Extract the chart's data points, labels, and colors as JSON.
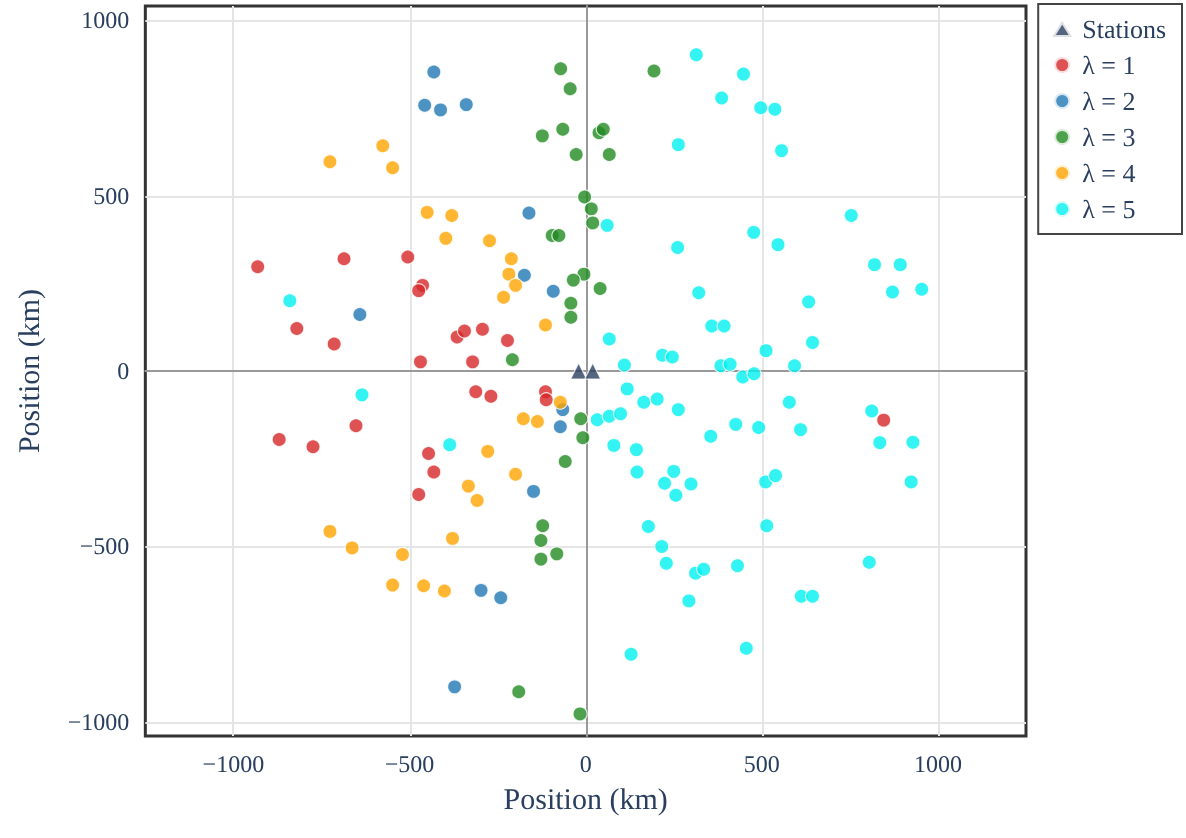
{
  "chart_data": {
    "type": "scatter",
    "xlabel": "Position (km)",
    "ylabel": "Position (km)",
    "xlim": [
      -1250,
      1250
    ],
    "ylim": [
      -1040,
      1040
    ],
    "xticks": [
      -1000,
      -500,
      0,
      500,
      1000
    ],
    "yticks": [
      -1000,
      -500,
      0,
      500,
      1000
    ],
    "grid": true,
    "legend": "top right",
    "marker": "circle",
    "series": [
      {
        "name": "Stations",
        "color": "#2a3f5f",
        "marker": "triangle",
        "x": [
          -20,
          20
        ],
        "values": [
          0,
          0
        ]
      },
      {
        "name": "λ = 1",
        "color": "#d62728",
        "x": [
          -931,
          -686,
          -505,
          -463,
          -474,
          -820,
          -714,
          -365,
          -344,
          -293,
          -222,
          -469,
          -321,
          -312,
          -269,
          -114,
          -112,
          -870,
          -774,
          -652,
          -446,
          -431,
          -474,
          846
        ],
        "values": [
          297,
          320,
          325,
          244,
          229,
          121,
          77,
          97,
          114,
          119,
          87,
          26,
          26,
          -59,
          -72,
          -59,
          -82,
          -195,
          -216,
          -156,
          -235,
          -288,
          -352,
          -140
        ]
      },
      {
        "name": "λ = 2",
        "color": "#1f77b4",
        "x": [
          -431,
          -457,
          -412,
          -339,
          -161,
          -174,
          -92,
          -641,
          -65,
          -72,
          -148,
          -297,
          -241,
          -372
        ],
        "values": [
          852,
          757,
          744,
          759,
          450,
          273,
          227,
          161,
          -110,
          -159,
          -343,
          -625,
          -646,
          -900
        ]
      },
      {
        "name": "λ = 3",
        "color": "#228b22",
        "x": [
          -71,
          -44,
          -65,
          -123,
          -27,
          -3,
          16,
          20,
          -95,
          -76,
          -5,
          -35,
          -42,
          -42,
          -208,
          41,
          194,
          38,
          50,
          67,
          -14,
          -8,
          -58,
          -122,
          -127,
          -127,
          -82,
          -190,
          -16
        ],
        "values": [
          861,
          804,
          689,
          670,
          617,
          496,
          462,
          422,
          386,
          386,
          276,
          259,
          193,
          153,
          32,
          235,
          855,
          679,
          689,
          617,
          -136,
          -190,
          -258,
          -441,
          -483,
          -536,
          -521,
          -914,
          -977
        ]
      },
      {
        "name": "λ = 4",
        "color": "#ffa500",
        "x": [
          -576,
          -726,
          -548,
          -450,
          -380,
          -397,
          -273,
          -211,
          -218,
          -199,
          -233,
          -114,
          -72,
          -177,
          -137,
          -278,
          -199,
          -333,
          -308,
          -726,
          -663,
          -520,
          -378,
          -548,
          -460,
          -401
        ],
        "values": [
          642,
          596,
          579,
          452,
          443,
          378,
          371,
          320,
          276,
          244,
          210,
          131,
          -89,
          -136,
          -144,
          -229,
          -294,
          -328,
          -369,
          -457,
          -504,
          -523,
          -477,
          -610,
          -612,
          -627
        ]
      },
      {
        "name": "λ = 5",
        "color": "#00f0f0",
        "x": [
          -840,
          -635,
          -386,
          314,
          448,
          386,
          497,
          537,
          263,
          556,
          754,
          61,
          477,
          546,
          261,
          820,
          893,
          871,
          954,
          321,
          633,
          358,
          393,
          67,
          644,
          512,
          218,
          246,
          110,
          384,
          410,
          593,
          446,
          478,
          118,
          33,
          67,
          99,
          165,
          203,
          263,
          80,
          144,
          146,
          250,
          224,
          299,
          256,
          355,
          426,
          491,
          578,
          610,
          812,
          835,
          929,
          924,
          511,
          539,
          514,
          178,
          216,
          229,
          312,
          335,
          431,
          293,
          805,
          612,
          644,
          129,
          456
        ],
        "values": [
          200,
          -68,
          -210,
          901,
          846,
          778,
          750,
          746,
          645,
          628,
          443,
          415,
          395,
          360,
          352,
          303,
          303,
          225,
          233,
          223,
          197,
          128,
          128,
          91,
          81,
          58,
          45,
          40,
          17,
          15,
          19,
          15,
          -17,
          -8,
          -51,
          -139,
          -129,
          -122,
          -89,
          -80,
          -110,
          -212,
          -224,
          -288,
          -286,
          -320,
          -322,
          -354,
          -186,
          -152,
          -161,
          -89,
          -167,
          -114,
          -204,
          -203,
          -316,
          -316,
          -298,
          -441,
          -443,
          -500,
          -548,
          -576,
          -565,
          -555,
          -655,
          -545,
          -642,
          -642,
          -807,
          -790
        ]
      }
    ]
  }
}
